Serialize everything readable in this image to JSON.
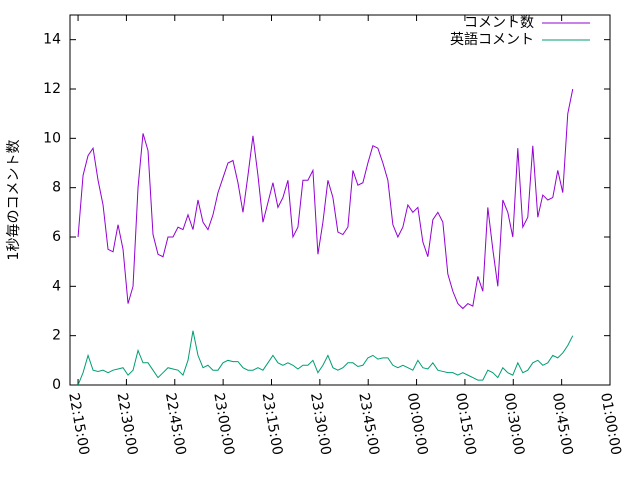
{
  "chart_data": {
    "type": "line",
    "ylabel": "1秒毎のコメント数",
    "x": [
      80100,
      80193,
      80286,
      80379,
      80472,
      80565,
      80658,
      80751,
      80844,
      80937,
      81030,
      81123,
      81216,
      81309,
      81402,
      81495,
      81588,
      81681,
      81774,
      81867,
      81960,
      82053,
      82146,
      82239,
      82332,
      82425,
      82518,
      82611,
      82704,
      82797,
      82890,
      82983,
      83076,
      83169,
      83262,
      83355,
      83448,
      83541,
      83634,
      83727,
      83820,
      83913,
      84006,
      84099,
      84192,
      84285,
      84378,
      84471,
      84564,
      84657,
      84750,
      84843,
      84936,
      85029,
      85122,
      85215,
      85308,
      85401,
      85494,
      85587,
      85680,
      85773,
      85866,
      85959,
      86052,
      86145,
      86238,
      86331,
      86424,
      86517,
      86610,
      86703,
      86796,
      86889,
      86982,
      87075,
      87168,
      87261,
      87354,
      87447,
      87540,
      87633,
      87726,
      87819,
      87912,
      88005,
      88098,
      88191,
      88284,
      88377,
      88470,
      88563,
      88656,
      88749,
      88842,
      88935,
      89028,
      89121,
      89214,
      89307
    ],
    "series": [
      {
        "name": "コメント数",
        "color": "#9400d3",
        "values": [
          6.0,
          8.5,
          9.3,
          9.6,
          8.3,
          7.3,
          5.5,
          5.4,
          6.5,
          5.5,
          3.3,
          4.0,
          8.0,
          10.2,
          9.5,
          6.1,
          5.3,
          5.2,
          6.0,
          6.0,
          6.4,
          6.3,
          6.9,
          6.3,
          7.5,
          6.6,
          6.3,
          6.9,
          7.8,
          8.4,
          9.0,
          9.1,
          8.2,
          7.0,
          8.5,
          10.1,
          8.5,
          6.6,
          7.4,
          8.2,
          7.2,
          7.6,
          8.3,
          6.0,
          6.4,
          8.3,
          8.3,
          8.7,
          5.3,
          6.6,
          8.3,
          7.6,
          6.2,
          6.1,
          6.4,
          8.7,
          8.1,
          8.2,
          9.0,
          9.7,
          9.6,
          9.0,
          8.3,
          6.5,
          6.0,
          6.4,
          7.3,
          7.0,
          7.2,
          5.8,
          5.2,
          6.7,
          7.0,
          6.6,
          4.5,
          3.8,
          3.3,
          3.1,
          3.3,
          3.2,
          4.4,
          3.8,
          7.2,
          5.5,
          4.0,
          7.5,
          7.0,
          6.0,
          9.6,
          6.4,
          6.8,
          9.7,
          6.8,
          7.7,
          7.5,
          7.6,
          8.7,
          7.8,
          11.0,
          12.0
        ]
      },
      {
        "name": "英語コメント",
        "color": "#009e73",
        "values": [
          0.0,
          0.5,
          1.2,
          0.6,
          0.55,
          0.6,
          0.5,
          0.6,
          0.65,
          0.7,
          0.4,
          0.6,
          1.4,
          0.9,
          0.9,
          0.6,
          0.3,
          0.5,
          0.7,
          0.65,
          0.6,
          0.4,
          1.0,
          2.2,
          1.2,
          0.7,
          0.8,
          0.6,
          0.6,
          0.9,
          1.0,
          0.95,
          0.95,
          0.7,
          0.6,
          0.6,
          0.7,
          0.6,
          0.9,
          1.2,
          0.9,
          0.8,
          0.9,
          0.8,
          0.65,
          0.8,
          0.8,
          1.0,
          0.5,
          0.8,
          1.2,
          0.7,
          0.6,
          0.7,
          0.9,
          0.9,
          0.75,
          0.8,
          1.1,
          1.2,
          1.05,
          1.1,
          1.1,
          0.8,
          0.7,
          0.8,
          0.7,
          0.6,
          1.0,
          0.7,
          0.65,
          0.9,
          0.6,
          0.55,
          0.5,
          0.5,
          0.4,
          0.5,
          0.4,
          0.3,
          0.2,
          0.2,
          0.6,
          0.5,
          0.3,
          0.7,
          0.5,
          0.4,
          0.9,
          0.5,
          0.6,
          0.9,
          1.0,
          0.8,
          0.9,
          1.2,
          1.1,
          1.3,
          1.6,
          2.0
        ]
      }
    ],
    "xlim": [
      79950,
      90000
    ],
    "xticks": [
      {
        "value": 80100,
        "label": "22:15:00"
      },
      {
        "value": 81000,
        "label": "22:30:00"
      },
      {
        "value": 81900,
        "label": "22:45:00"
      },
      {
        "value": 82800,
        "label": "23:00:00"
      },
      {
        "value": 83700,
        "label": "23:15:00"
      },
      {
        "value": 84600,
        "label": "23:30:00"
      },
      {
        "value": 85500,
        "label": "23:45:00"
      },
      {
        "value": 86400,
        "label": "00:00:00"
      },
      {
        "value": 87300,
        "label": "00:15:00"
      },
      {
        "value": 88200,
        "label": "00:30:00"
      },
      {
        "value": 89100,
        "label": "00:45:00"
      },
      {
        "value": 90000,
        "label": "01:00:00"
      }
    ],
    "ylim": [
      0,
      15
    ],
    "yticks": [
      0,
      2,
      4,
      6,
      8,
      10,
      12,
      14
    ],
    "grid": false,
    "legend": "top-right"
  }
}
